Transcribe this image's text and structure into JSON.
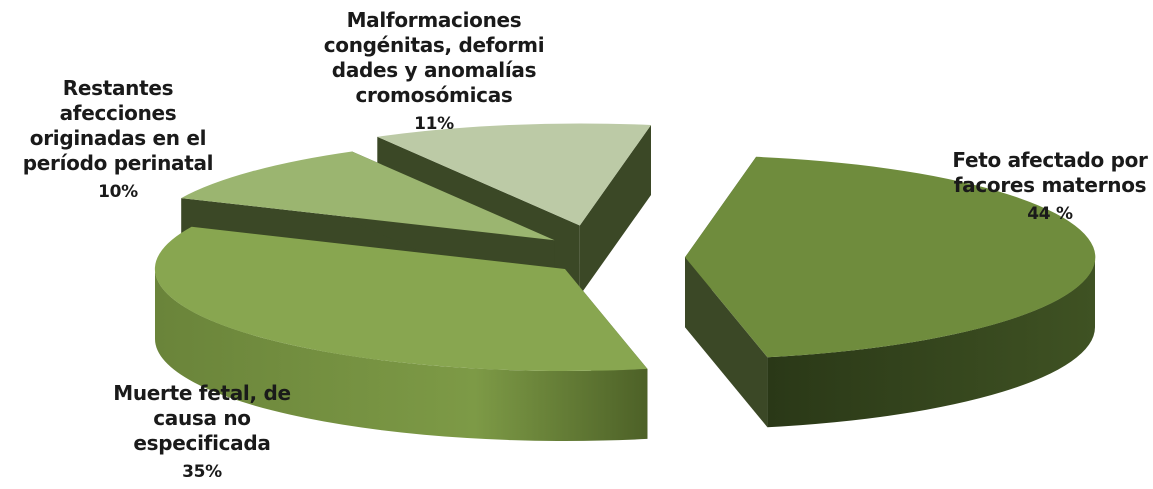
{
  "chart_data": {
    "type": "pie",
    "style": "3d-exploded",
    "title": "",
    "slices": [
      {
        "name": "Feto afectado por\nfacores maternos",
        "value": 44,
        "value_label": "44 %",
        "color": "#6f8c3d"
      },
      {
        "name": "Muerte fetal, de\ncausa no\nespecificada",
        "value": 35,
        "value_label": "35%",
        "color": "#88a650"
      },
      {
        "name": "Restantes\nafecciones\noriginadas en el\nperíodo perinatal",
        "value": 10,
        "value_label": "10%",
        "color": "#9bb570"
      },
      {
        "name": "Malformaciones\ncongénitas, deformi\ndades y anomalías\ncromosómicas",
        "value": 11,
        "value_label": "11%",
        "color": "#bccaa6"
      }
    ]
  }
}
